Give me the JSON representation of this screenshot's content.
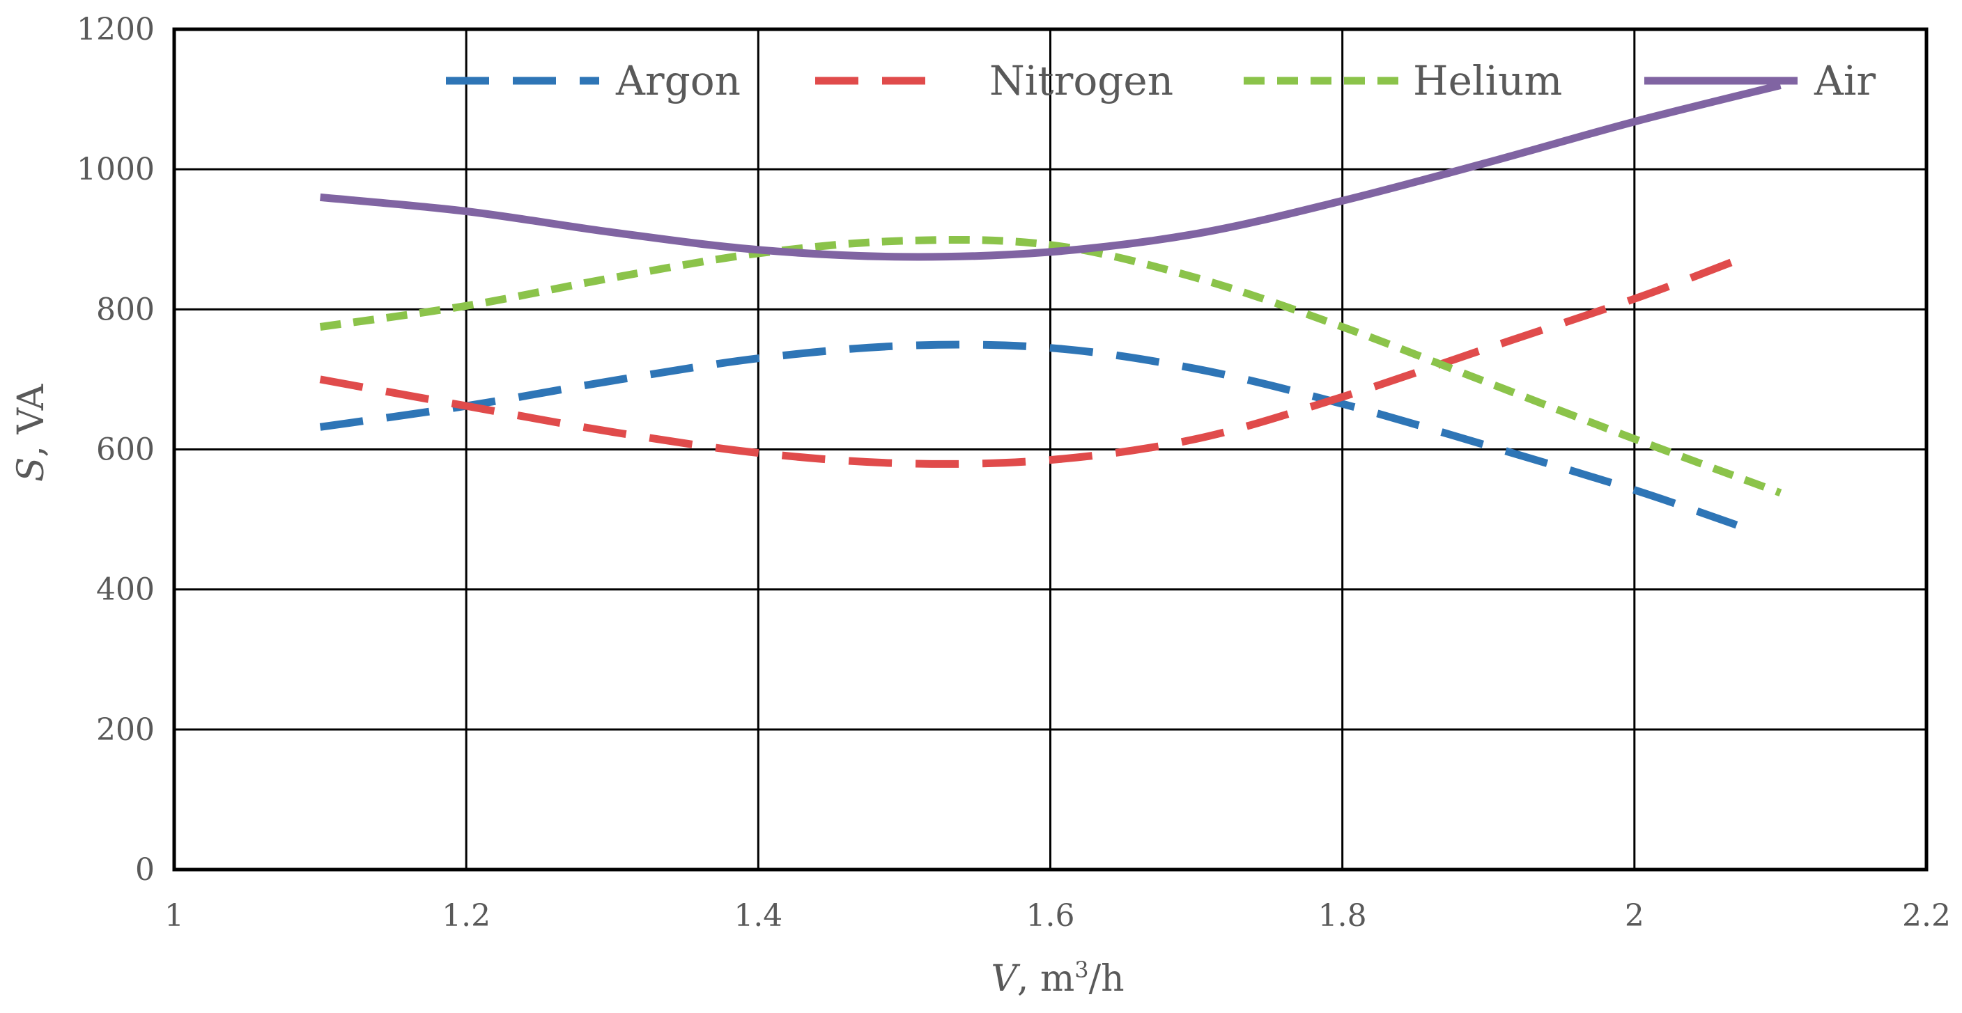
{
  "chart_data": {
    "type": "line",
    "title": "",
    "xlabel": {
      "var": "V",
      "rest": ", m",
      "sup": "3",
      "tail": "/h"
    },
    "ylabel": {
      "var": "S",
      "rest": ", VA"
    },
    "xlim": [
      1,
      2.2
    ],
    "ylim": [
      0,
      1200
    ],
    "xticks": [
      "1",
      "1.2",
      "1.4",
      "1.6",
      "1.8",
      "2",
      "2.2"
    ],
    "yticks": [
      "0",
      "200",
      "400",
      "600",
      "800",
      "1000",
      "1200"
    ],
    "xtick_values": [
      1,
      1.2,
      1.4,
      1.6,
      1.8,
      2,
      2.2
    ],
    "ytick_values": [
      0,
      200,
      400,
      600,
      800,
      1000,
      1200
    ],
    "grid": true,
    "legend_position": "top",
    "series": [
      {
        "name": "Argon",
        "color": "#2E75B6",
        "style": "long-dash",
        "x": [
          1.1,
          1.2,
          1.3,
          1.4,
          1.5,
          1.6,
          1.7,
          1.8,
          1.9,
          2.0,
          2.07
        ],
        "y": [
          632,
          662,
          698,
          730,
          748,
          745,
          715,
          665,
          605,
          542,
          492
        ]
      },
      {
        "name": "Nitrogen",
        "color": "#E04B4B",
        "style": "long-dash",
        "x": [
          1.1,
          1.2,
          1.3,
          1.4,
          1.5,
          1.6,
          1.7,
          1.8,
          1.9,
          2.0,
          2.07
        ],
        "y": [
          700,
          662,
          625,
          595,
          580,
          585,
          615,
          675,
          745,
          815,
          870
        ]
      },
      {
        "name": "Helium",
        "color": "#8BC34A",
        "style": "short-dash",
        "x": [
          1.1,
          1.2,
          1.3,
          1.4,
          1.5,
          1.6,
          1.7,
          1.8,
          1.9,
          2.0,
          2.1
        ],
        "y": [
          775,
          805,
          845,
          880,
          898,
          892,
          845,
          775,
          695,
          615,
          538
        ]
      },
      {
        "name": "Air",
        "color": "#8064A2",
        "style": "solid",
        "x": [
          1.1,
          1.2,
          1.3,
          1.4,
          1.5,
          1.6,
          1.7,
          1.8,
          1.9,
          2.0,
          2.1
        ],
        "y": [
          960,
          940,
          910,
          885,
          875,
          882,
          908,
          955,
          1010,
          1068,
          1120
        ]
      }
    ]
  }
}
